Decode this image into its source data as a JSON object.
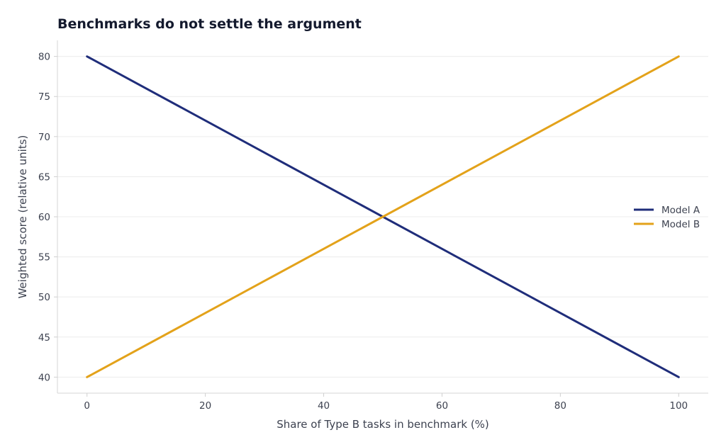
{
  "chart_data": {
    "type": "line",
    "title": "Benchmarks do not settle the argument",
    "xlabel": "Share of Type B tasks in benchmark (%)",
    "ylabel": "Weighted score (relative units)",
    "xlim": [
      -5,
      105
    ],
    "ylim": [
      38,
      82
    ],
    "xticks": [
      0,
      20,
      40,
      60,
      80,
      100
    ],
    "yticks": [
      40,
      45,
      50,
      55,
      60,
      65,
      70,
      75,
      80
    ],
    "grid": "horizontal",
    "legend_position": "center-right",
    "series": [
      {
        "name": "Model A",
        "color": "#1f2d7a",
        "x": [
          0,
          100
        ],
        "y": [
          80,
          40
        ]
      },
      {
        "name": "Model B",
        "color": "#e3a21a",
        "x": [
          0,
          100
        ],
        "y": [
          40,
          80
        ]
      }
    ]
  }
}
